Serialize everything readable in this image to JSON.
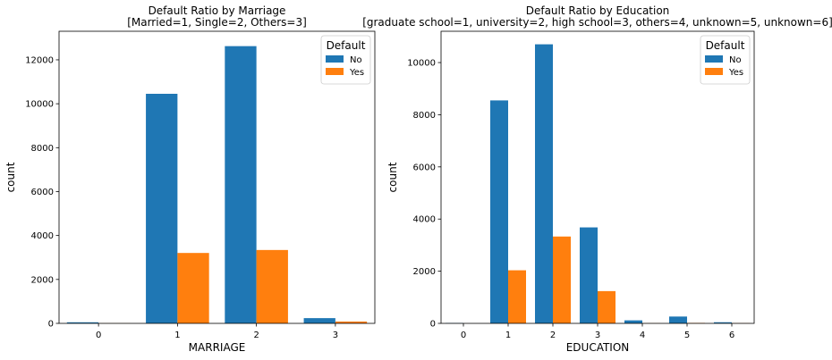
{
  "chart_data": [
    {
      "type": "bar",
      "title": "Default Ratio by Marriage",
      "subtitle": "[Married=1, Single=2, Others=3]",
      "xlabel": "MARRIAGE",
      "ylabel": "count",
      "categories": [
        "0",
        "1",
        "2",
        "3"
      ],
      "ylim": [
        0,
        13300
      ],
      "yticks": [
        0,
        2000,
        4000,
        6000,
        8000,
        10000,
        12000
      ],
      "legend": {
        "title": "Default",
        "position": "top-right"
      },
      "series": [
        {
          "name": "No",
          "color": "#1f77b4",
          "values": [
            49,
            10453,
            12623,
            239
          ]
        },
        {
          "name": "Yes",
          "color": "#ff7f0e",
          "values": [
            5,
            3206,
            3341,
            84
          ]
        }
      ]
    },
    {
      "type": "bar",
      "title": "Default Ratio by Education",
      "subtitle": "[graduate school=1, university=2, high school=3, others=4, unknown=5, unknown=6]",
      "xlabel": "EDUCATION",
      "ylabel": "count",
      "categories": [
        "0",
        "1",
        "2",
        "3",
        "4",
        "5",
        "6"
      ],
      "ylim": [
        0,
        11200
      ],
      "yticks": [
        0,
        2000,
        4000,
        6000,
        8000,
        10000
      ],
      "legend": {
        "title": "Default",
        "position": "top-right"
      },
      "series": [
        {
          "name": "No",
          "color": "#1f77b4",
          "values": [
            14,
            8549,
            10700,
            3680,
            116,
            262,
            43
          ]
        },
        {
          "name": "Yes",
          "color": "#ff7f0e",
          "values": [
            0,
            2036,
            3330,
            1237,
            7,
            18,
            8
          ]
        }
      ]
    }
  ]
}
